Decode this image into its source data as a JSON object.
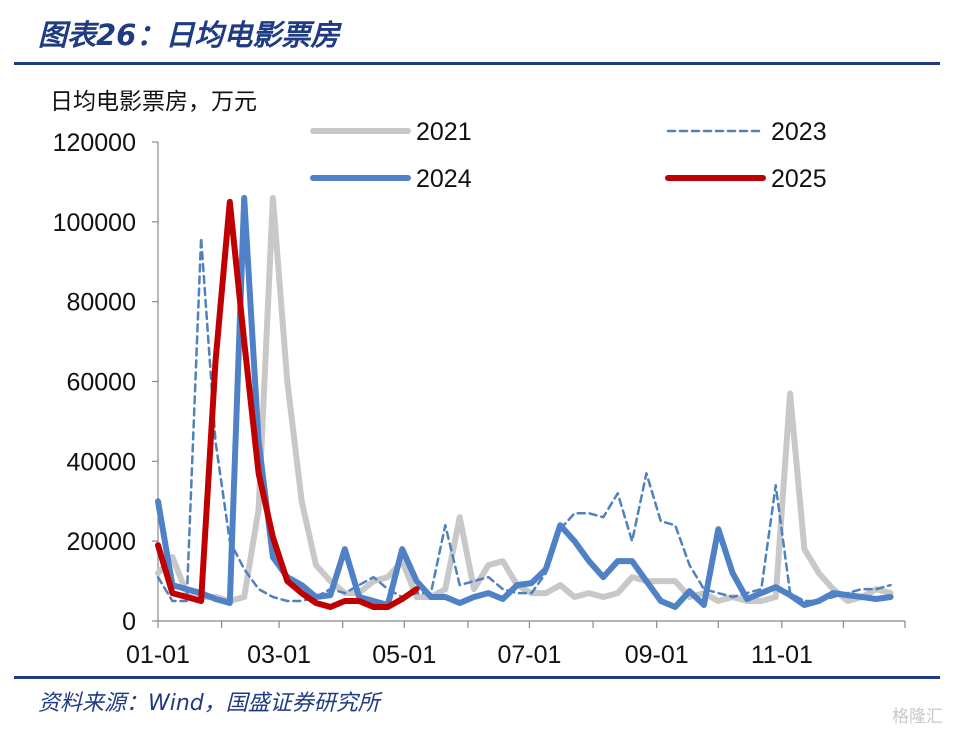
{
  "header": {
    "title": "图表26：日均电影票房"
  },
  "footer": {
    "source": "资料来源：Wind，国盛证券研究所",
    "watermark": "格隆汇"
  },
  "chart_data": {
    "type": "line",
    "ylabel": "日均电影票房，万元",
    "ylim": [
      0,
      120000
    ],
    "yticks": [
      "0",
      "20000",
      "40000",
      "60000",
      "80000",
      "100000",
      "120000"
    ],
    "xticks": [
      "01-01",
      "03-01",
      "05-01",
      "07-01",
      "09-01",
      "11-01"
    ],
    "xlim": [
      1,
      53
    ],
    "x_unit": "week of year",
    "series": [
      {
        "name": "2021",
        "color": "#c8c8c8",
        "style": "solid",
        "width": 6,
        "x": [
          1,
          2,
          3,
          4,
          5,
          6,
          7,
          8,
          9,
          10,
          11,
          12,
          13,
          14,
          15,
          16,
          17,
          18,
          19,
          20,
          21,
          22,
          23,
          24,
          25,
          26,
          27,
          28,
          29,
          30,
          31,
          32,
          33,
          34,
          35,
          36,
          37,
          38,
          39,
          40,
          41,
          42,
          43,
          44,
          45,
          46,
          47,
          48,
          49,
          50,
          51,
          52
        ],
        "values": [
          12000,
          16000,
          7000,
          6000,
          6000,
          5000,
          6000,
          28000,
          106000,
          60000,
          30000,
          14000,
          10000,
          7000,
          7000,
          10000,
          11000,
          15000,
          6000,
          6000,
          8000,
          26000,
          8000,
          14000,
          15000,
          9000,
          7000,
          7000,
          9000,
          6000,
          7000,
          6000,
          7000,
          11000,
          10000,
          10000,
          10000,
          6000,
          7000,
          5000,
          6000,
          5000,
          5000,
          6000,
          57000,
          18000,
          12000,
          8000,
          5000,
          6000,
          8000,
          7000
        ]
      },
      {
        "name": "2023",
        "color": "#4f81bd",
        "style": "dashed",
        "width": 2.5,
        "x": [
          1,
          2,
          3,
          4,
          5,
          6,
          7,
          8,
          9,
          10,
          11,
          12,
          13,
          14,
          15,
          16,
          17,
          18,
          19,
          20,
          21,
          22,
          23,
          24,
          25,
          26,
          27,
          28,
          29,
          30,
          31,
          32,
          33,
          34,
          35,
          36,
          37,
          38,
          39,
          40,
          41,
          42,
          43,
          44,
          45,
          46,
          47,
          48,
          49,
          50,
          51,
          52
        ],
        "values": [
          11000,
          5000,
          5000,
          96000,
          45000,
          20000,
          13000,
          8000,
          6000,
          5000,
          5000,
          6000,
          8000,
          7000,
          9000,
          11000,
          8000,
          6000,
          7000,
          7000,
          24000,
          9000,
          10000,
          11000,
          8000,
          7000,
          7000,
          12000,
          23000,
          27000,
          27000,
          26000,
          32000,
          20000,
          37000,
          25000,
          24000,
          14000,
          8000,
          7000,
          6000,
          7000,
          8000,
          34000,
          7000,
          5000,
          5000,
          6000,
          7000,
          8000,
          8000,
          9000
        ]
      },
      {
        "name": "2024",
        "color": "#4f81c6",
        "style": "solid",
        "width": 6,
        "x": [
          1,
          2,
          3,
          4,
          5,
          6,
          7,
          8,
          9,
          10,
          11,
          12,
          13,
          14,
          15,
          16,
          17,
          18,
          19,
          20,
          21,
          22,
          23,
          24,
          25,
          26,
          27,
          28,
          29,
          30,
          31,
          32,
          33,
          34,
          35,
          36,
          37,
          38,
          39,
          40,
          41,
          42,
          43,
          44,
          45,
          46,
          47,
          48,
          49,
          50,
          51,
          52
        ],
        "values": [
          30000,
          9000,
          8000,
          7000,
          5500,
          4500,
          106000,
          45000,
          16000,
          11000,
          9000,
          6000,
          6500,
          18000,
          6000,
          5000,
          4000,
          18000,
          10000,
          6000,
          6000,
          4500,
          6000,
          7000,
          5500,
          9000,
          9500,
          13000,
          24000,
          20000,
          15000,
          11000,
          15000,
          15000,
          10000,
          5000,
          3500,
          7500,
          4000,
          23000,
          12000,
          5500,
          7000,
          8500,
          6500,
          4000,
          5000,
          7000,
          6500,
          6000,
          5500,
          6000
        ]
      },
      {
        "name": "2025",
        "color": "#c00000",
        "style": "solid",
        "width": 6,
        "x": [
          1,
          2,
          3,
          4,
          5,
          6,
          7,
          8,
          9,
          10,
          11,
          12,
          13,
          14,
          15,
          16,
          17,
          18,
          19
        ],
        "values": [
          19000,
          7000,
          6000,
          5000,
          65000,
          105000,
          70000,
          37000,
          21000,
          10000,
          7000,
          4500,
          3500,
          5000,
          5000,
          3500,
          3500,
          5500,
          8000
        ]
      }
    ],
    "legend": "top-right, two columns"
  }
}
